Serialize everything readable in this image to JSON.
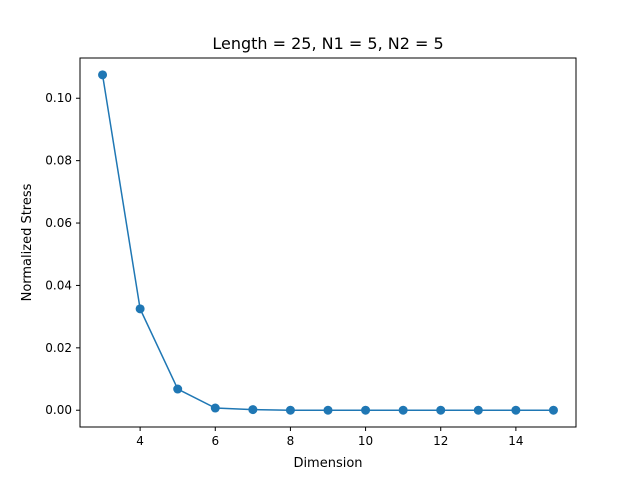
{
  "chart_data": {
    "type": "line",
    "title": "Length = 25, N1 = 5, N2 = 5",
    "xlabel": "Dimension",
    "ylabel": "Normalized Stress",
    "xlim": [
      2.4,
      15.6
    ],
    "ylim": [
      -0.005375,
      0.1129
    ],
    "x_ticks": [
      4,
      6,
      8,
      10,
      12,
      14
    ],
    "x_tick_labels": [
      "4",
      "6",
      "8",
      "10",
      "12",
      "14"
    ],
    "y_ticks": [
      0.0,
      0.02,
      0.04,
      0.06,
      0.08,
      0.1
    ],
    "y_tick_labels": [
      "0.00",
      "0.02",
      "0.04",
      "0.06",
      "0.08",
      "0.10"
    ],
    "grid": false,
    "series": [
      {
        "color": "#1f77b4",
        "marker": "circle",
        "x": [
          3,
          4,
          5,
          6,
          7,
          8,
          9,
          10,
          11,
          12,
          13,
          14,
          15
        ],
        "y": [
          0.1075,
          0.0325,
          0.0068,
          0.0007,
          0.0002,
          0.0,
          0.0,
          0.0,
          0.0,
          0.0,
          0.0,
          0.0,
          0.0
        ]
      }
    ]
  }
}
